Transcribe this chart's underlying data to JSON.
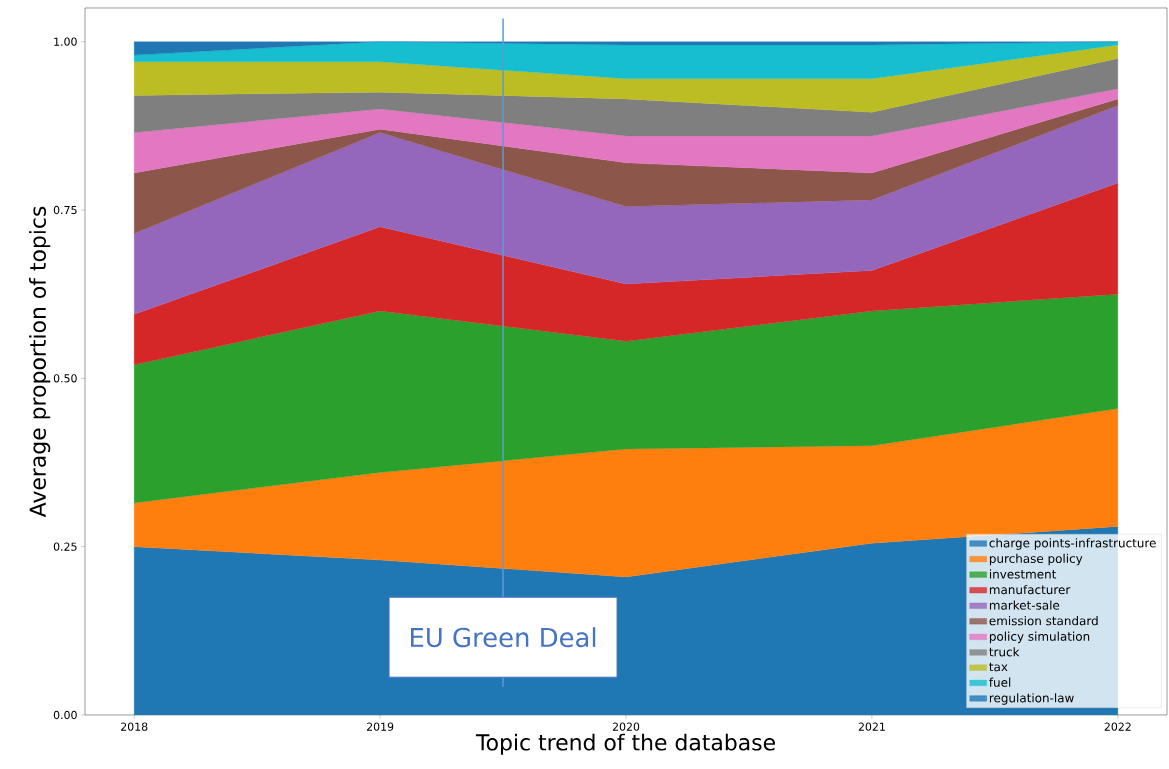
{
  "chart_data": {
    "type": "area",
    "stacked": true,
    "xlabel": "Topic trend of the database",
    "ylabel": "Average proportion of topics",
    "x": [
      2018,
      2019,
      2020,
      2021,
      2022
    ],
    "xlim": [
      2017.8,
      2022.2
    ],
    "xticks": [
      2018,
      2019,
      2020,
      2021,
      2022
    ],
    "ylim": [
      0,
      1.05
    ],
    "yticks": [
      {
        "value": 0,
        "label": "0.00"
      },
      {
        "value": 0.25,
        "label": "0.25"
      },
      {
        "value": 0.5,
        "label": "0.50"
      },
      {
        "value": 0.75,
        "label": "0.75"
      },
      {
        "value": 1,
        "label": "1.00"
      }
    ],
    "legend": "bottom right",
    "series": [
      {
        "name": "charge points-infrastructure",
        "color": "#1f77b4",
        "values": [
          0.25,
          0.23,
          0.205,
          0.255,
          0.28
        ]
      },
      {
        "name": "purchase policy",
        "color": "#ff7f0e",
        "values": [
          0.065,
          0.13,
          0.19,
          0.145,
          0.175
        ]
      },
      {
        "name": "investment",
        "color": "#2ca02c",
        "values": [
          0.205,
          0.24,
          0.16,
          0.2,
          0.17
        ]
      },
      {
        "name": "manufacturer",
        "color": "#d62728",
        "values": [
          0.075,
          0.125,
          0.085,
          0.06,
          0.165
        ]
      },
      {
        "name": "market-sale",
        "color": "#9467bd",
        "values": [
          0.12,
          0.14,
          0.115,
          0.105,
          0.115
        ]
      },
      {
        "name": "emission standard",
        "color": "#8c564b",
        "values": [
          0.09,
          0.005,
          0.065,
          0.04,
          0.01
        ]
      },
      {
        "name": "policy simulation",
        "color": "#e377c2",
        "values": [
          0.06,
          0.03,
          0.04,
          0.055,
          0.015
        ]
      },
      {
        "name": "truck",
        "color": "#7f7f7f",
        "values": [
          0.055,
          0.025,
          0.055,
          0.035,
          0.045
        ]
      },
      {
        "name": "tax",
        "color": "#bcbd22",
        "values": [
          0.05,
          0.045,
          0.03,
          0.05,
          0.02
        ]
      },
      {
        "name": "fuel",
        "color": "#17becf",
        "values": [
          0.01,
          0.03,
          0.05,
          0.05,
          0.005
        ]
      },
      {
        "name": "regulation-law",
        "color": "#1f77b4",
        "values": [
          0.02,
          0.0,
          0.005,
          0.005,
          0.0
        ]
      }
    ],
    "ref_lines": [
      {
        "axis": "x",
        "value": 2019.5,
        "label": "EU Green Deal",
        "color": "#5b9bd5"
      }
    ]
  }
}
